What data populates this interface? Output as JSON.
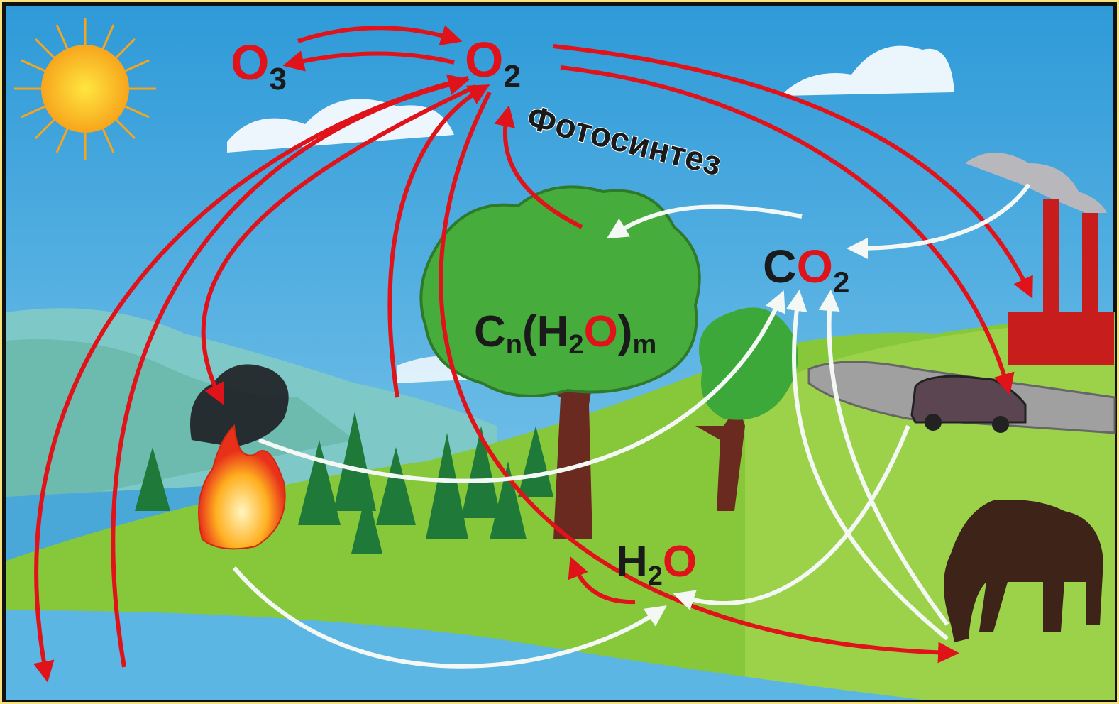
{
  "nodes": [
    {
      "parts": [
        "O",
        "3"
      ]
    },
    {
      "parts": [
        "O",
        "2"
      ]
    },
    {
      "parts": [
        "C",
        "O",
        "2"
      ]
    },
    {
      "parts": [
        "C",
        "n",
        "(H",
        "2",
        "O",
        ")",
        "m"
      ]
    },
    {
      "parts": [
        "H",
        "2",
        "O"
      ]
    }
  ],
  "process": {
    "photosynthesis": "Фотосинтез"
  }
}
